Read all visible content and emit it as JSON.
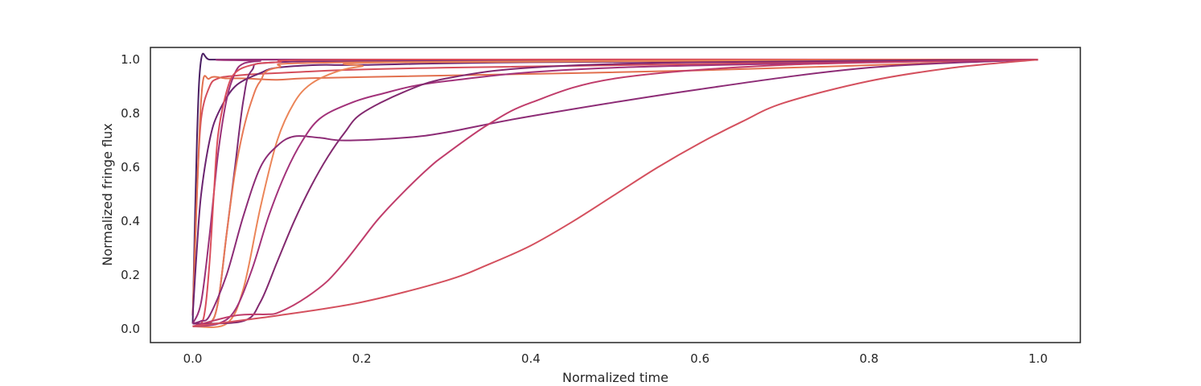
{
  "chart_data": {
    "type": "line",
    "title": "",
    "xlabel": "Normalized time",
    "ylabel": "Normalized fringe flux",
    "xlim": [
      -0.05,
      1.05
    ],
    "ylim": [
      -0.05,
      1.045
    ],
    "xticks": [
      0.0,
      0.2,
      0.4,
      0.6,
      0.8,
      1.0
    ],
    "xtick_labels": [
      "0.0",
      "0.2",
      "0.4",
      "0.6",
      "0.8",
      "1.0"
    ],
    "yticks": [
      0.0,
      0.2,
      0.4,
      0.6,
      0.8,
      1.0
    ],
    "ytick_labels": [
      "0.0",
      "0.2",
      "0.4",
      "0.6",
      "0.8",
      "1.0"
    ],
    "grid": false,
    "legend": "none",
    "series": [
      {
        "color": "#4a1f63",
        "x": [
          0,
          0.005,
          0.01,
          0.02,
          0.05,
          0.1,
          0.2,
          0.5,
          1.0
        ],
        "y": [
          0.02,
          0.7,
          1.0,
          1.0,
          1.0,
          1.0,
          1.0,
          1.0,
          1.0
        ]
      },
      {
        "color": "#d44e5b",
        "x": [
          0,
          0.005,
          0.01,
          0.02,
          0.03,
          0.05,
          0.1,
          0.3,
          1.0
        ],
        "y": [
          0.05,
          0.5,
          0.78,
          0.9,
          0.93,
          0.94,
          0.95,
          0.97,
          1.0
        ]
      },
      {
        "color": "#e2704f",
        "x": [
          0,
          0.01,
          0.02,
          0.04,
          0.06,
          0.1,
          0.13,
          0.2,
          0.6,
          1.0
        ],
        "y": [
          0.05,
          0.85,
          0.93,
          0.93,
          0.93,
          0.925,
          0.93,
          0.935,
          0.96,
          1.0
        ]
      },
      {
        "color": "#6b2470",
        "x": [
          0,
          0.005,
          0.01,
          0.02,
          0.03,
          0.05,
          0.08,
          0.1,
          0.15,
          0.2,
          0.4,
          1.0
        ],
        "y": [
          0.05,
          0.3,
          0.5,
          0.7,
          0.8,
          0.9,
          0.95,
          0.97,
          0.98,
          0.98,
          0.99,
          1.0
        ]
      },
      {
        "color": "#7c2b74",
        "x": [
          0,
          0.02,
          0.03,
          0.04,
          0.05,
          0.06,
          0.07,
          0.1,
          0.3,
          1.0
        ],
        "y": [
          0.01,
          0.02,
          0.1,
          0.35,
          0.6,
          0.85,
          0.96,
          0.99,
          0.995,
          1.0
        ]
      },
      {
        "color": "#9a3078",
        "x": [
          0,
          0.01,
          0.02,
          0.03,
          0.04,
          0.05,
          0.06,
          0.08,
          0.1,
          1.0
        ],
        "y": [
          0.02,
          0.1,
          0.35,
          0.65,
          0.85,
          0.95,
          0.985,
          0.995,
          1.0,
          1.0
        ]
      },
      {
        "color": "#d94d5c",
        "x": [
          0,
          0.01,
          0.015,
          0.02,
          0.025,
          0.03,
          0.04,
          0.05,
          0.07,
          0.1,
          0.2,
          1.0
        ],
        "y": [
          0.01,
          0.02,
          0.08,
          0.25,
          0.5,
          0.72,
          0.88,
          0.95,
          0.98,
          0.99,
          1.0,
          1.0
        ]
      },
      {
        "color": "#e87a56",
        "x": [
          0,
          0.02,
          0.03,
          0.04,
          0.05,
          0.06,
          0.07,
          0.08,
          0.1,
          0.2,
          1.0
        ],
        "y": [
          0.01,
          0.02,
          0.1,
          0.35,
          0.58,
          0.74,
          0.85,
          0.92,
          0.97,
          0.99,
          1.0
        ]
      },
      {
        "color": "#eb8558",
        "x": [
          0,
          0.04,
          0.06,
          0.08,
          0.1,
          0.12,
          0.14,
          0.17,
          0.2,
          0.25,
          1.0
        ],
        "y": [
          0.01,
          0.02,
          0.15,
          0.45,
          0.7,
          0.84,
          0.91,
          0.955,
          0.975,
          0.99,
          1.0
        ]
      },
      {
        "color": "#8d2c76",
        "x": [
          0,
          0.01,
          0.02,
          0.04,
          0.06,
          0.08,
          0.1,
          0.12,
          0.15,
          0.18,
          0.25,
          0.3,
          0.4,
          0.6,
          0.8,
          1.0
        ],
        "y": [
          0.02,
          0.03,
          0.05,
          0.2,
          0.42,
          0.6,
          0.68,
          0.715,
          0.71,
          0.7,
          0.71,
          0.73,
          0.79,
          0.89,
          0.97,
          1.0
        ]
      },
      {
        "color": "#a2327a",
        "x": [
          0,
          0.03,
          0.05,
          0.07,
          0.09,
          0.11,
          0.13,
          0.15,
          0.18,
          0.22,
          0.3,
          0.5,
          1.0
        ],
        "y": [
          0.01,
          0.02,
          0.07,
          0.22,
          0.42,
          0.58,
          0.7,
          0.78,
          0.83,
          0.87,
          0.92,
          0.97,
          1.0
        ]
      },
      {
        "color": "#82296f",
        "x": [
          0,
          0.06,
          0.08,
          0.1,
          0.12,
          0.14,
          0.16,
          0.18,
          0.2,
          0.25,
          0.3,
          0.4,
          0.6,
          1.0
        ],
        "y": [
          0.02,
          0.03,
          0.1,
          0.25,
          0.4,
          0.53,
          0.64,
          0.73,
          0.8,
          0.88,
          0.93,
          0.97,
          0.99,
          1.0
        ]
      },
      {
        "color": "#c03d6b",
        "x": [
          0,
          0.05,
          0.09,
          0.1,
          0.12,
          0.14,
          0.16,
          0.18,
          0.2,
          0.22,
          0.25,
          0.28,
          0.3,
          0.35,
          0.4,
          0.5,
          0.7,
          1.0
        ],
        "y": [
          0.01,
          0.05,
          0.055,
          0.06,
          0.09,
          0.13,
          0.18,
          0.25,
          0.33,
          0.41,
          0.51,
          0.6,
          0.65,
          0.76,
          0.84,
          0.93,
          0.98,
          1.0
        ]
      },
      {
        "color": "#d4505e",
        "x": [
          0,
          0.1,
          0.2,
          0.3,
          0.35,
          0.4,
          0.45,
          0.5,
          0.55,
          0.6,
          0.65,
          0.7,
          0.8,
          0.9,
          1.0
        ],
        "y": [
          0.01,
          0.05,
          0.1,
          0.18,
          0.24,
          0.31,
          0.4,
          0.5,
          0.6,
          0.69,
          0.77,
          0.84,
          0.92,
          0.97,
          1.0
        ]
      }
    ]
  }
}
